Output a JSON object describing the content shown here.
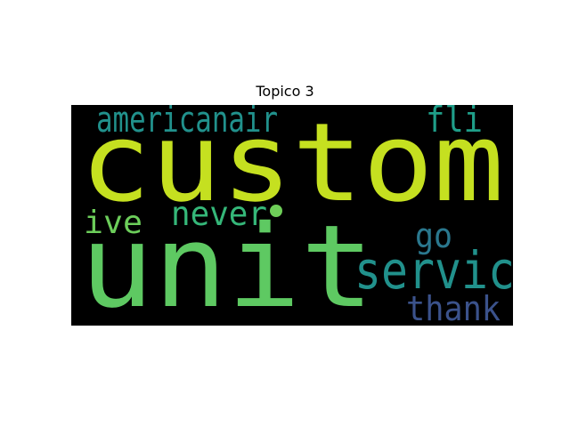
{
  "title": "Topico 3",
  "chart_data": {
    "type": "wordcloud",
    "title": "Topico 3",
    "background": "#000000",
    "words": [
      {
        "text": "custom",
        "color": "#c5e020"
      },
      {
        "text": "unit",
        "color": "#5ec962"
      },
      {
        "text": "servic",
        "color": "#21918c"
      },
      {
        "text": "americanair",
        "color": "#21918c"
      },
      {
        "text": "fli",
        "color": "#1f9e89"
      },
      {
        "text": "never",
        "color": "#35b779"
      },
      {
        "text": "ive",
        "color": "#6ccd5a"
      },
      {
        "text": "go",
        "color": "#2a788e"
      },
      {
        "text": "thank",
        "color": "#3b528b"
      },
      {
        "text": "·",
        "color": "#6ece58"
      }
    ]
  }
}
